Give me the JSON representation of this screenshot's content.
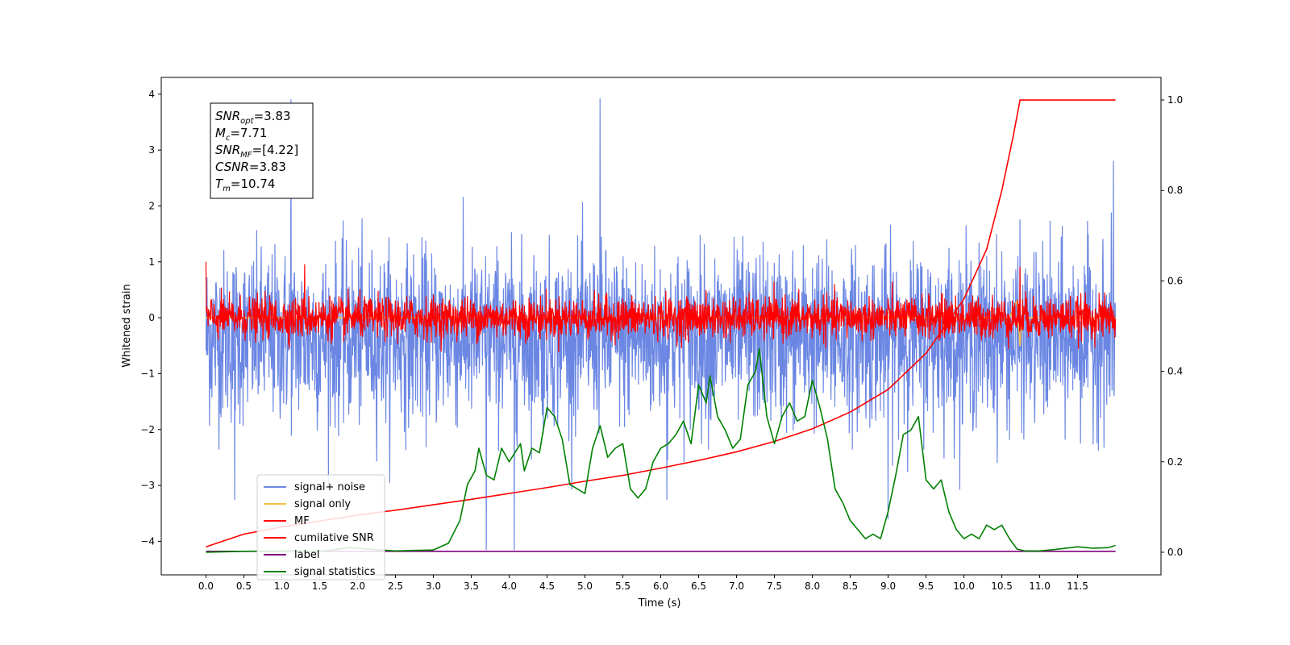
{
  "chart_data": {
    "type": "line",
    "xlabel": "Time (s)",
    "ylabel": "Whitened strain",
    "x_ticks": [
      0.0,
      0.5,
      1.0,
      1.5,
      2.0,
      2.5,
      3.0,
      3.5,
      4.0,
      4.5,
      5.0,
      5.5,
      6.0,
      6.5,
      7.0,
      7.5,
      8.0,
      8.5,
      9.0,
      9.5,
      10.0,
      10.5,
      11.0,
      11.5
    ],
    "x_tick_labels": [
      "0.0",
      "0.5",
      "1.0",
      "1.5",
      "2.0",
      "2.5",
      "3.0",
      "3.5",
      "4.0",
      "4.5",
      "5.0",
      "5.5",
      "6.0",
      "6.5",
      "7.0",
      "7.5",
      "8.0",
      "8.5",
      "9.0",
      "9.5",
      "10.0",
      "10.5",
      "11.0",
      "11.5"
    ],
    "xlim": [
      -0.59,
      12.6
    ],
    "left_axis": {
      "ylim": [
        -4.6,
        4.3
      ],
      "ticks": [
        -4,
        -3,
        -2,
        -1,
        0,
        1,
        2,
        3,
        4
      ],
      "tick_labels": [
        "−4",
        "−3",
        "−2",
        "−1",
        "0",
        "1",
        "2",
        "3",
        "4"
      ]
    },
    "right_axis": {
      "ylim": [
        -0.05,
        1.05
      ],
      "ticks": [
        0.0,
        0.2,
        0.4,
        0.6,
        0.8,
        1.0
      ],
      "tick_labels": [
        "0.0",
        "0.2",
        "0.4",
        "0.6",
        "0.8",
        "1.0"
      ]
    },
    "grid": false,
    "legend_position": "lower-left",
    "annotation": {
      "lines": [
        {
          "sym": "SNR",
          "sub": "opt",
          "value": "=3.83"
        },
        {
          "sym": "M",
          "sub": "c",
          "value": "=7.71"
        },
        {
          "sym": "SNR",
          "sub": "MF",
          "value": "=[4.22]"
        },
        {
          "sym": "CSNR",
          "sub": "",
          "value": "=3.83"
        },
        {
          "sym": "T",
          "sub": "m",
          "value": "=10.74"
        }
      ]
    },
    "series": [
      {
        "name": "signal+ noise",
        "axis": "left",
        "color": "#6b87e3",
        "noise": true,
        "x_start": 0.0,
        "x_end": 12.0,
        "center": -0.35,
        "envelope": 1.7,
        "spikes": [
          {
            "x": 1.12,
            "y": 3.9
          },
          {
            "x": 5.2,
            "y": 3.92
          },
          {
            "x": 3.7,
            "y": -4.15
          },
          {
            "x": 4.07,
            "y": -4.15
          },
          {
            "x": 6.08,
            "y": -3.25
          },
          {
            "x": 11.97,
            "y": 2.8
          },
          {
            "x": 0.38,
            "y": -3.25
          },
          {
            "x": 9.0,
            "y": -3.6
          }
        ]
      },
      {
        "name": "signal only",
        "axis": "left",
        "color": "#f5c04a",
        "points": [
          [
            0.0,
            0.0
          ],
          [
            10.6,
            0.0
          ],
          [
            10.7,
            0.3
          ],
          [
            10.74,
            -0.5
          ],
          [
            10.78,
            0.2
          ],
          [
            10.85,
            0.0
          ],
          [
            12.0,
            0.0
          ]
        ]
      },
      {
        "name": "MF",
        "axis": "left",
        "color": "#ff0000",
        "noise": true,
        "x_start": 0.0,
        "x_end": 12.0,
        "center": 0.0,
        "envelope": 0.4,
        "spikes": [
          {
            "x": 0.0,
            "y": 1.0
          },
          {
            "x": 1.3,
            "y": 0.95
          },
          {
            "x": 10.74,
            "y": 0.9
          }
        ]
      },
      {
        "name": "cumilative SNR",
        "axis": "right",
        "color": "#ff0000",
        "points": [
          [
            0.0,
            0.012
          ],
          [
            0.5,
            0.04
          ],
          [
            1.0,
            0.056
          ],
          [
            1.5,
            0.069
          ],
          [
            2.0,
            0.082
          ],
          [
            2.5,
            0.093
          ],
          [
            3.0,
            0.105
          ],
          [
            3.5,
            0.117
          ],
          [
            4.0,
            0.13
          ],
          [
            4.5,
            0.143
          ],
          [
            5.0,
            0.157
          ],
          [
            5.5,
            0.17
          ],
          [
            6.0,
            0.186
          ],
          [
            6.5,
            0.203
          ],
          [
            7.0,
            0.222
          ],
          [
            7.5,
            0.245
          ],
          [
            8.0,
            0.273
          ],
          [
            8.5,
            0.31
          ],
          [
            9.0,
            0.36
          ],
          [
            9.5,
            0.44
          ],
          [
            10.0,
            0.56
          ],
          [
            10.3,
            0.67
          ],
          [
            10.5,
            0.8
          ],
          [
            10.65,
            0.92
          ],
          [
            10.74,
            1.0
          ],
          [
            12.0,
            1.0
          ]
        ]
      },
      {
        "name": "label",
        "axis": "right",
        "color": "#800080",
        "points": [
          [
            0.0,
            0.002
          ],
          [
            12.0,
            0.002
          ]
        ]
      },
      {
        "name": "signal statistics",
        "axis": "right",
        "color": "#008000",
        "points": [
          [
            0.0,
            0.0
          ],
          [
            0.5,
            0.002
          ],
          [
            1.0,
            0.003
          ],
          [
            1.5,
            0.002
          ],
          [
            1.9,
            0.01
          ],
          [
            2.2,
            0.006
          ],
          [
            2.5,
            0.003
          ],
          [
            3.0,
            0.005
          ],
          [
            3.2,
            0.02
          ],
          [
            3.35,
            0.07
          ],
          [
            3.45,
            0.15
          ],
          [
            3.55,
            0.18
          ],
          [
            3.6,
            0.23
          ],
          [
            3.7,
            0.17
          ],
          [
            3.8,
            0.16
          ],
          [
            3.9,
            0.23
          ],
          [
            4.0,
            0.2
          ],
          [
            4.15,
            0.24
          ],
          [
            4.2,
            0.18
          ],
          [
            4.3,
            0.23
          ],
          [
            4.4,
            0.22
          ],
          [
            4.5,
            0.32
          ],
          [
            4.6,
            0.3
          ],
          [
            4.7,
            0.25
          ],
          [
            4.8,
            0.15
          ],
          [
            4.9,
            0.14
          ],
          [
            5.0,
            0.13
          ],
          [
            5.1,
            0.23
          ],
          [
            5.2,
            0.28
          ],
          [
            5.3,
            0.21
          ],
          [
            5.4,
            0.23
          ],
          [
            5.5,
            0.24
          ],
          [
            5.6,
            0.14
          ],
          [
            5.7,
            0.12
          ],
          [
            5.8,
            0.14
          ],
          [
            5.9,
            0.2
          ],
          [
            6.0,
            0.23
          ],
          [
            6.1,
            0.24
          ],
          [
            6.2,
            0.26
          ],
          [
            6.3,
            0.29
          ],
          [
            6.4,
            0.24
          ],
          [
            6.5,
            0.37
          ],
          [
            6.6,
            0.33
          ],
          [
            6.65,
            0.39
          ],
          [
            6.75,
            0.3
          ],
          [
            6.85,
            0.27
          ],
          [
            6.95,
            0.23
          ],
          [
            7.05,
            0.25
          ],
          [
            7.15,
            0.37
          ],
          [
            7.25,
            0.4
          ],
          [
            7.3,
            0.45
          ],
          [
            7.4,
            0.3
          ],
          [
            7.5,
            0.24
          ],
          [
            7.6,
            0.3
          ],
          [
            7.7,
            0.33
          ],
          [
            7.8,
            0.29
          ],
          [
            7.9,
            0.3
          ],
          [
            8.0,
            0.38
          ],
          [
            8.1,
            0.32
          ],
          [
            8.2,
            0.25
          ],
          [
            8.3,
            0.14
          ],
          [
            8.4,
            0.11
          ],
          [
            8.5,
            0.07
          ],
          [
            8.6,
            0.05
          ],
          [
            8.7,
            0.03
          ],
          [
            8.8,
            0.04
          ],
          [
            8.9,
            0.03
          ],
          [
            9.0,
            0.09
          ],
          [
            9.1,
            0.17
          ],
          [
            9.2,
            0.26
          ],
          [
            9.3,
            0.27
          ],
          [
            9.4,
            0.3
          ],
          [
            9.5,
            0.16
          ],
          [
            9.6,
            0.14
          ],
          [
            9.7,
            0.16
          ],
          [
            9.8,
            0.09
          ],
          [
            9.9,
            0.05
          ],
          [
            10.0,
            0.03
          ],
          [
            10.1,
            0.04
          ],
          [
            10.2,
            0.03
          ],
          [
            10.3,
            0.06
          ],
          [
            10.4,
            0.05
          ],
          [
            10.5,
            0.06
          ],
          [
            10.6,
            0.03
          ],
          [
            10.7,
            0.007
          ],
          [
            10.8,
            0.003
          ],
          [
            11.0,
            0.003
          ],
          [
            11.2,
            0.006
          ],
          [
            11.4,
            0.01
          ],
          [
            11.5,
            0.012
          ],
          [
            11.7,
            0.009
          ],
          [
            11.9,
            0.01
          ],
          [
            12.0,
            0.015
          ]
        ]
      }
    ]
  }
}
